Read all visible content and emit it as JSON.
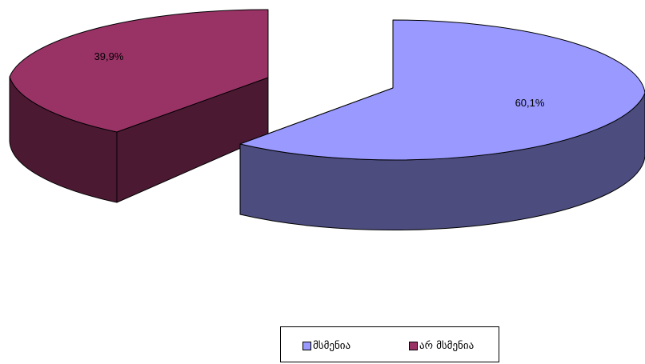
{
  "chart_data": {
    "type": "pie",
    "style": "3d-exploded",
    "categories": [
      "მსმენია",
      "არ მსმენია"
    ],
    "values": [
      60.1,
      39.9
    ],
    "value_format": "percent, comma decimal",
    "data_labels": [
      "60,1%",
      "39,9%"
    ],
    "colors": {
      "slice_top": [
        "#9999ff",
        "#993366"
      ],
      "slice_side": [
        "#4c4c7f",
        "#4c1933"
      ]
    },
    "legend_position": "bottom-center"
  }
}
